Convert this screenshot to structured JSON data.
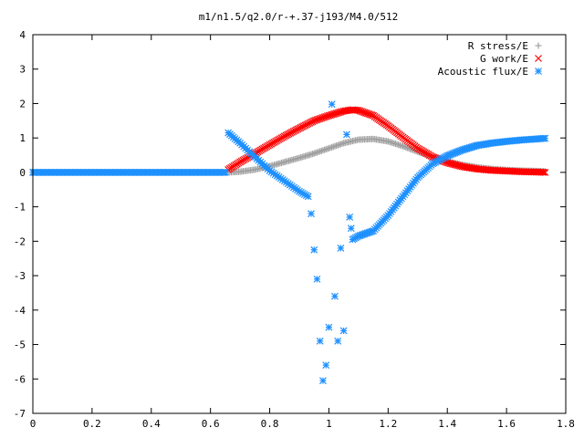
{
  "chart_data": {
    "type": "scatter",
    "title": "m1/n1.5/q2.0/r-+.37-j193/M4.0/512",
    "xlabel": "",
    "ylabel": "",
    "xlim": [
      0,
      1.8
    ],
    "ylim": [
      -7,
      4
    ],
    "grid": false,
    "legend_position": "top-right",
    "xticks": [
      "0",
      "0.2",
      "0.4",
      "0.6",
      "0.8",
      "1",
      "1.2",
      "1.4",
      "1.6",
      "1.8"
    ],
    "yticks": [
      "4",
      "3",
      "2",
      "1",
      "0",
      "-1",
      "-2",
      "-3",
      "-4",
      "-5",
      "-6",
      "-7"
    ],
    "series": [
      {
        "name": "R stress/E",
        "marker": "plus",
        "color": "#a0a0a0",
        "x": [
          0.66,
          0.7,
          0.75,
          0.8,
          0.85,
          0.9,
          0.95,
          1.0,
          1.05,
          1.1,
          1.15,
          1.2,
          1.25,
          1.3,
          1.35,
          1.4,
          1.45,
          1.5,
          1.55,
          1.6,
          1.65,
          1.7,
          1.73
        ],
        "y": [
          0.0,
          0.02,
          0.08,
          0.18,
          0.3,
          0.42,
          0.55,
          0.7,
          0.85,
          0.95,
          0.97,
          0.9,
          0.76,
          0.6,
          0.45,
          0.32,
          0.22,
          0.15,
          0.1,
          0.07,
          0.05,
          0.04,
          0.03
        ]
      },
      {
        "name": "G work/E",
        "marker": "cross",
        "color": "#ff0000",
        "x": [
          0.66,
          0.7,
          0.75,
          0.8,
          0.85,
          0.9,
          0.95,
          1.0,
          1.05,
          1.08,
          1.1,
          1.15,
          1.2,
          1.25,
          1.3,
          1.35,
          1.4,
          1.45,
          1.5,
          1.55,
          1.6,
          1.65,
          1.7,
          1.73
        ],
        "y": [
          0.08,
          0.3,
          0.55,
          0.8,
          1.05,
          1.28,
          1.5,
          1.65,
          1.78,
          1.82,
          1.8,
          1.65,
          1.35,
          1.02,
          0.7,
          0.45,
          0.28,
          0.17,
          0.1,
          0.06,
          0.04,
          0.02,
          0.01,
          0.0
        ]
      },
      {
        "name": "Acoustic flux/E",
        "marker": "star",
        "color": "#1e90ff",
        "x": [
          0.0,
          0.1,
          0.2,
          0.3,
          0.4,
          0.5,
          0.6,
          0.65,
          0.66,
          0.7,
          0.75,
          0.8,
          0.85,
          0.9,
          0.93,
          0.94,
          0.95,
          0.96,
          0.97,
          0.98,
          0.99,
          1.0,
          1.01,
          1.02,
          1.03,
          1.04,
          1.05,
          1.06,
          1.07,
          1.08,
          1.1,
          1.15,
          1.2,
          1.25,
          1.3,
          1.35,
          1.4,
          1.45,
          1.5,
          1.55,
          1.6,
          1.65,
          1.7,
          1.73
        ],
        "y": [
          0.0,
          0.0,
          0.0,
          0.0,
          0.0,
          0.0,
          0.0,
          0.0,
          1.15,
          0.85,
          0.45,
          0.05,
          -0.25,
          -0.55,
          -0.7,
          -1.2,
          -2.25,
          -3.1,
          -4.9,
          -6.05,
          -5.6,
          -4.5,
          1.98,
          -3.6,
          -4.9,
          -2.2,
          -4.6,
          1.1,
          -1.3,
          -1.95,
          -1.85,
          -1.7,
          -1.25,
          -0.7,
          -0.15,
          0.25,
          0.48,
          0.65,
          0.78,
          0.85,
          0.9,
          0.94,
          0.97,
          0.99
        ]
      }
    ]
  }
}
